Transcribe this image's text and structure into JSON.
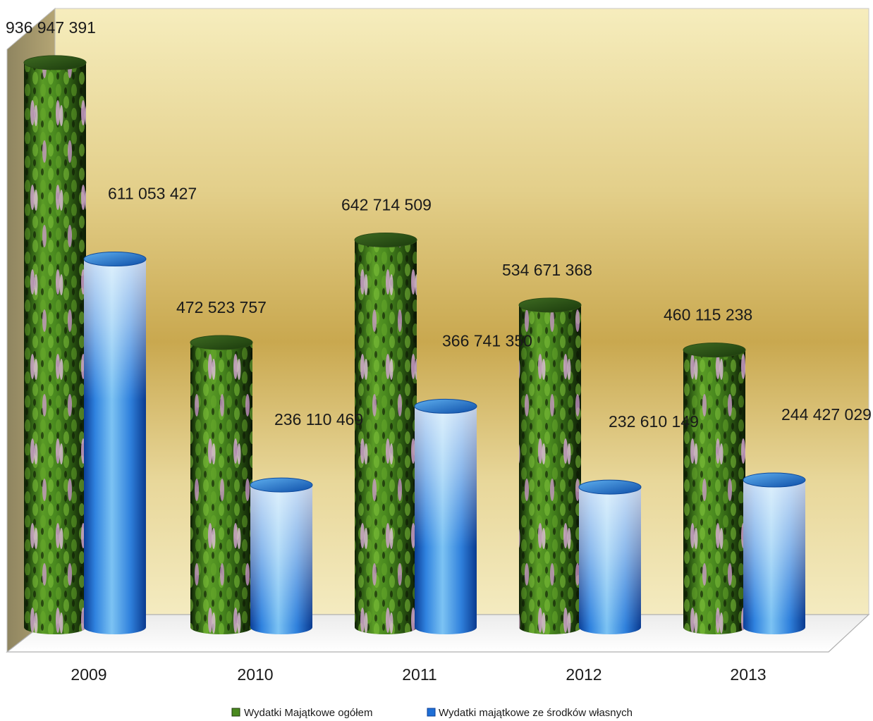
{
  "chart_data": {
    "type": "bar",
    "style": "3d-cylinder",
    "categories": [
      "2009",
      "2010",
      "2011",
      "2012",
      "2013"
    ],
    "series": [
      {
        "name": "Wydatki Majątkowe ogółem",
        "values": [
          936947391,
          472523757,
          642714509,
          534671368,
          460115238
        ],
        "labels": [
          "936 947 391",
          "472 523 757",
          "642 714 509",
          "534 671 368",
          "460 115 238"
        ],
        "color": "#3d7a1e"
      },
      {
        "name": "Wydatki majątkowe ze środków własnych",
        "values": [
          611053427,
          236110469,
          366741350,
          232610149,
          244427029
        ],
        "labels": [
          "611 053 427",
          "236 110 469",
          "366 741 350",
          "232 610 149",
          "244 427 029"
        ],
        "color": "#1e6fd6"
      }
    ],
    "ylim": [
      0,
      1000000000
    ],
    "grid": false,
    "legend_position": "bottom",
    "background_colors": [
      "#f2e6a6",
      "#c9a648"
    ]
  }
}
